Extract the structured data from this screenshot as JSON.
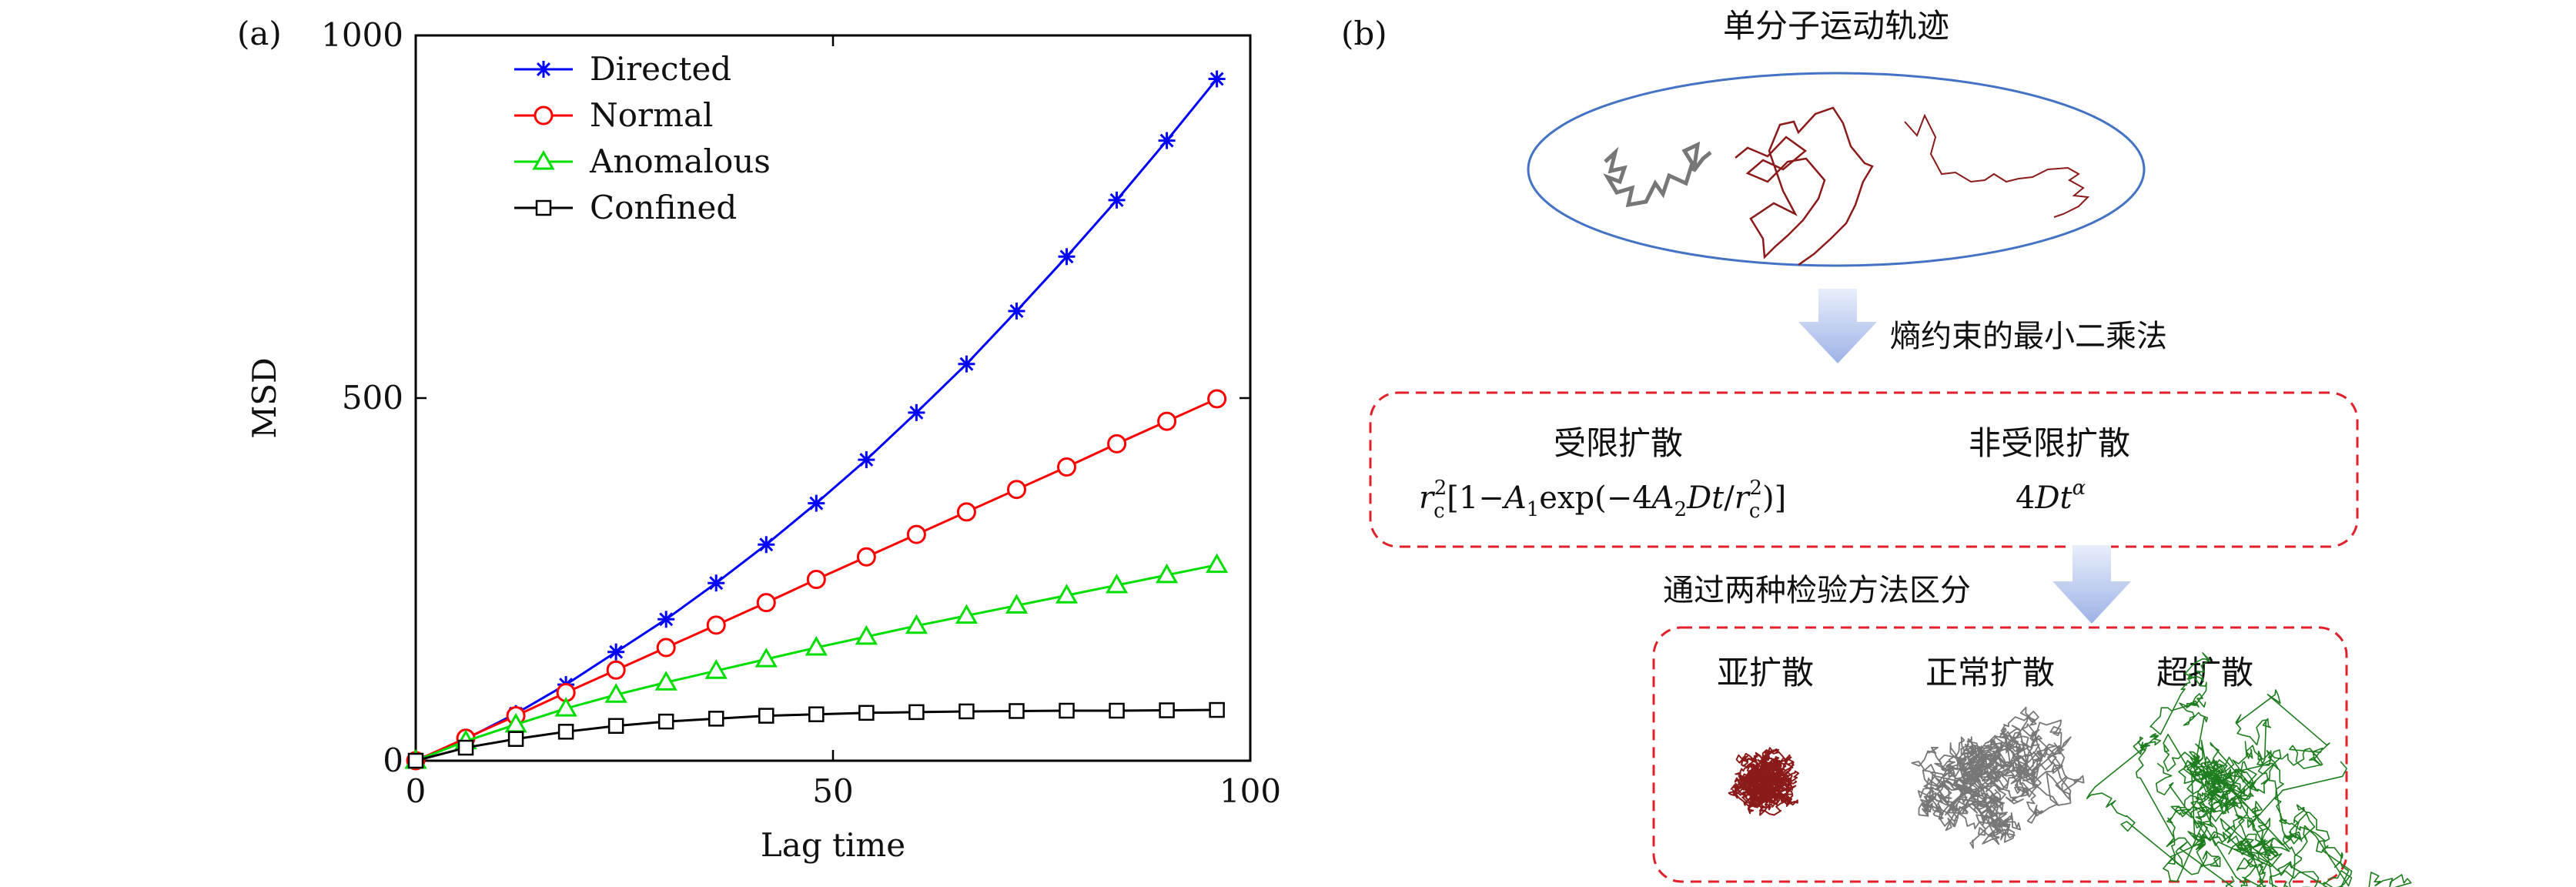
{
  "chart_data": [
    {
      "type": "line",
      "panel_label": "(a)",
      "xlabel": "Lag time",
      "ylabel": "MSD",
      "xlim": [
        0,
        100
      ],
      "ylim": [
        0,
        1000
      ],
      "xticks": [
        0,
        50,
        100
      ],
      "yticks": [
        0,
        500,
        1000
      ],
      "grid": false,
      "legend_position": "top-left",
      "x": [
        0,
        6,
        12,
        18,
        24,
        30,
        36,
        42,
        48,
        54,
        60,
        66,
        72,
        78,
        84,
        90,
        96
      ],
      "series": [
        {
          "name": "Directed",
          "color": "#0000ff",
          "marker": "asterisk",
          "values": [
            0,
            30,
            65,
            105,
            150,
            195,
            245,
            298,
            355,
            415,
            480,
            547,
            620,
            695,
            773,
            855,
            940
          ]
        },
        {
          "name": "Normal",
          "color": "#ff0000",
          "marker": "circle",
          "values": [
            0,
            31,
            62,
            94,
            125,
            156,
            187,
            218,
            250,
            281,
            312,
            343,
            374,
            405,
            437,
            468,
            499
          ]
        },
        {
          "name": "Anomalous",
          "color": "#00dd00",
          "marker": "triangle",
          "values": [
            0,
            27,
            50,
            72,
            91,
            108,
            124,
            140,
            156,
            171,
            186,
            200,
            214,
            228,
            242,
            256,
            270
          ]
        },
        {
          "name": "Confined",
          "color": "#000000",
          "marker": "square",
          "values": [
            0,
            18,
            30,
            40,
            48,
            54,
            58,
            62,
            64,
            66,
            67,
            68,
            68.5,
            69,
            69,
            69.5,
            70
          ]
        }
      ]
    }
  ],
  "panel_b": {
    "label": "(b)",
    "title": "单分子运动轨迹",
    "arrow1_text": "熵约束的最小二乘法",
    "arrow2_text": "通过两种检验方法区分",
    "box1": {
      "left_title": "受限扩散",
      "right_title": "非受限扩散",
      "left_formula": "r_c^2[1−A_1 exp(−4A_2Dt/r_c^2)]",
      "right_formula": "4Dt^α"
    },
    "box2": {
      "items": [
        "亚扩散",
        "正常扩散",
        "超扩散"
      ]
    },
    "colors": {
      "ellipse": "#4472c4",
      "dashed_box": "#e0202a",
      "arrow": "#a9bce9",
      "traj_gray": "#777777",
      "traj_darkred": "#8b1a1a",
      "traj_green": "#1e7d1e"
    }
  }
}
